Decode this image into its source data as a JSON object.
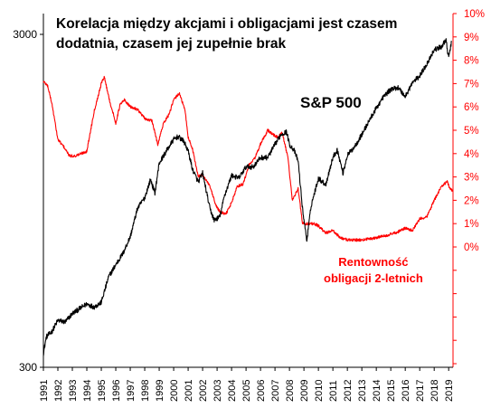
{
  "title": {
    "line1": "Korelacja  między akcjami i obligacjami  jest czasem",
    "line2": "dodatnia,  czasem jej zupełnie brak"
  },
  "chart_data": {
    "type": "line",
    "left_axis": {
      "scale": "log",
      "ticks": [
        "300",
        "3000"
      ],
      "range": [
        300,
        3000
      ]
    },
    "right_axis": {
      "ticks": [
        "0%",
        "1%",
        "2%",
        "3%",
        "4%",
        "5%",
        "6%",
        "7%",
        "8%",
        "9%",
        "10%"
      ],
      "range": [
        -5,
        10
      ]
    },
    "x_ticks": [
      "1991",
      "1992",
      "1993",
      "1994",
      "1995",
      "1996",
      "1997",
      "1998",
      "1999",
      "2000",
      "2001",
      "2002",
      "2003",
      "2004",
      "2005",
      "2006",
      "2007",
      "2008",
      "2009",
      "2010",
      "2011",
      "2012",
      "2013",
      "2014",
      "2015",
      "2016",
      "2017",
      "2018",
      "2019"
    ],
    "colors": {
      "sp500": "#000000",
      "yield": "#ff0000"
    },
    "grid": false,
    "series": [
      {
        "name": "S&P 500",
        "axis": "left",
        "x": [
          1991.0,
          1991.2,
          1991.6,
          1992.0,
          1992.5,
          1993.0,
          1993.5,
          1994.0,
          1994.5,
          1995.0,
          1995.5,
          1996.0,
          1996.5,
          1997.0,
          1997.5,
          1998.0,
          1998.4,
          1998.7,
          1999.0,
          1999.5,
          2000.0,
          2000.3,
          2000.7,
          2001.0,
          2001.3,
          2001.7,
          2002.0,
          2002.5,
          2002.8,
          2003.2,
          2003.5,
          2004.0,
          2004.5,
          2005.0,
          2005.5,
          2006.0,
          2006.5,
          2007.0,
          2007.4,
          2007.8,
          2008.0,
          2008.3,
          2008.6,
          2008.9,
          2009.2,
          2009.5,
          2010.0,
          2010.5,
          2011.0,
          2011.3,
          2011.7,
          2012.0,
          2012.5,
          2013.0,
          2013.5,
          2014.0,
          2014.5,
          2015.0,
          2015.5,
          2016.0,
          2016.5,
          2017.0,
          2017.5,
          2018.0,
          2018.5,
          2018.8,
          2019.0,
          2019.2
        ],
        "values": [
          330,
          370,
          385,
          415,
          410,
          435,
          450,
          465,
          455,
          470,
          560,
          610,
          660,
          740,
          900,
          970,
          1100,
          1000,
          1230,
          1340,
          1450,
          1480,
          1430,
          1340,
          1180,
          1080,
          1150,
          900,
          830,
          850,
          980,
          1130,
          1110,
          1200,
          1200,
          1280,
          1280,
          1400,
          1500,
          1530,
          1400,
          1350,
          1250,
          900,
          720,
          920,
          1110,
          1060,
          1280,
          1350,
          1150,
          1300,
          1380,
          1500,
          1650,
          1800,
          1950,
          2050,
          2080,
          1950,
          2150,
          2250,
          2450,
          2700,
          2750,
          2900,
          2550,
          2850
        ]
      },
      {
        "name": "Rentowność obligacji 2-letnich",
        "axis": "right",
        "x": [
          1991.0,
          1991.3,
          1991.6,
          1992.0,
          1992.4,
          1992.8,
          1993.2,
          1993.6,
          1994.0,
          1994.5,
          1995.0,
          1995.2,
          1995.6,
          1996.0,
          1996.3,
          1996.6,
          1997.0,
          1997.5,
          1998.0,
          1998.5,
          1998.9,
          1999.3,
          1999.7,
          2000.0,
          2000.4,
          2000.8,
          2001.0,
          2001.3,
          2001.7,
          2002.0,
          2002.5,
          2002.9,
          2003.2,
          2003.6,
          2004.0,
          2004.4,
          2004.8,
          2005.2,
          2005.6,
          2006.0,
          2006.5,
          2006.9,
          2007.2,
          2007.5,
          2007.9,
          2008.2,
          2008.6,
          2008.9,
          2009.3,
          2009.7,
          2010.0,
          2010.5,
          2011.0,
          2011.5,
          2012.0,
          2013.0,
          2014.0,
          2014.7,
          2015.3,
          2016.0,
          2016.5,
          2017.0,
          2017.5,
          2018.0,
          2018.5,
          2018.9,
          2019.1,
          2019.3
        ],
        "values": [
          7.1,
          6.9,
          6.1,
          4.6,
          4.3,
          3.9,
          3.9,
          4.0,
          4.1,
          5.8,
          7.0,
          7.3,
          6.2,
          5.3,
          6.1,
          6.3,
          6.0,
          5.9,
          5.5,
          5.4,
          4.4,
          5.3,
          5.7,
          6.3,
          6.6,
          5.8,
          4.7,
          4.2,
          3.0,
          3.1,
          2.6,
          1.8,
          1.5,
          1.4,
          1.9,
          2.6,
          2.7,
          3.5,
          3.8,
          4.4,
          5.0,
          4.8,
          4.7,
          4.9,
          3.8,
          2.0,
          2.5,
          1.0,
          1.0,
          1.0,
          0.9,
          0.6,
          0.7,
          0.4,
          0.3,
          0.3,
          0.4,
          0.5,
          0.6,
          0.8,
          0.7,
          1.2,
          1.3,
          2.0,
          2.6,
          2.8,
          2.5,
          2.4
        ]
      }
    ],
    "annotations": {
      "sp500_label": "S&P 500",
      "yield_label_line1": "Rentowność",
      "yield_label_line2": "obligacji 2-letnich"
    }
  }
}
